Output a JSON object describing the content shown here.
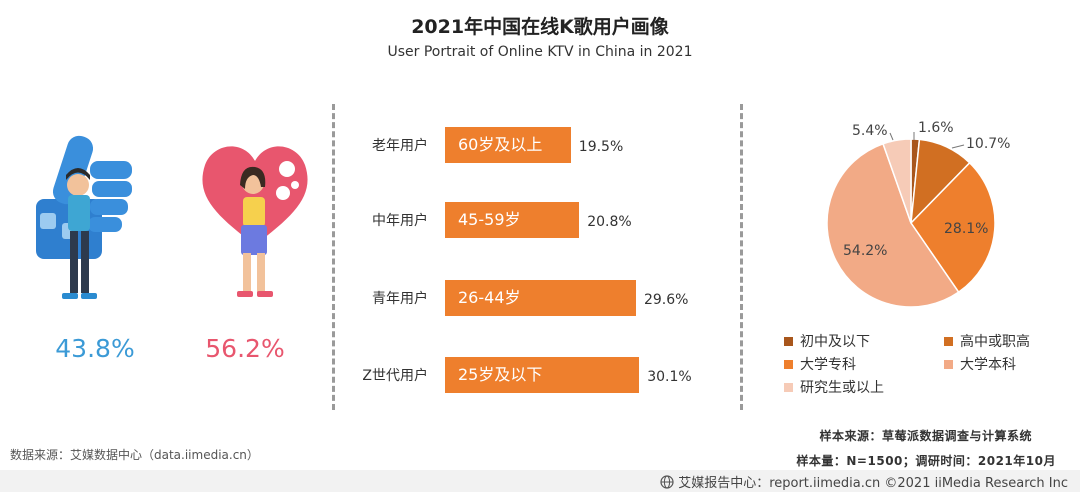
{
  "header": {
    "title": "2021年中国在线K歌用户画像",
    "subtitle": "User Portrait of Online KTV in China in 2021"
  },
  "gender": {
    "male_pct": "43.8%",
    "female_pct": "56.2%",
    "male_icon": "thumbs-up-man-icon",
    "female_icon": "heart-woman-icon"
  },
  "chart_data": [
    {
      "type": "bar",
      "orientation": "horizontal",
      "categories": [
        "老年用户",
        "中年用户",
        "青年用户",
        "Z世代用户"
      ],
      "bar_labels": [
        "60岁及以上",
        "45-59岁",
        "26-44岁",
        "25岁及以下"
      ],
      "values": [
        19.5,
        20.8,
        29.6,
        30.1
      ],
      "value_labels": [
        "19.5%",
        "20.8%",
        "29.6%",
        "30.1%"
      ],
      "unit": "%",
      "color": "#ee7f2d",
      "xlim": [
        0,
        31
      ]
    },
    {
      "type": "pie",
      "categories": [
        "初中及以下",
        "高中或职高",
        "大学专科",
        "大学本科",
        "研究生或以上"
      ],
      "values": [
        1.6,
        10.7,
        28.1,
        54.2,
        5.4
      ],
      "value_labels": [
        "1.6%",
        "10.7%",
        "28.1%",
        "54.2%",
        "5.4%"
      ],
      "colors": [
        "#a8561c",
        "#d16f22",
        "#ee7f2d",
        "#f2aa86",
        "#f6cbb7"
      ],
      "legend_position": "bottom"
    }
  ],
  "legend": {
    "items": [
      "初中及以下",
      "高中或职高",
      "大学专科",
      "大学本科",
      "研究生或以上"
    ]
  },
  "footer": {
    "source_left": "数据来源：艾媒数据中心（data.iimedia.cn）",
    "sample_source": "样本来源：草莓派数据调查与计算系统",
    "sample_size": "样本量：N=1500；调研时间：2021年10月",
    "brand": "艾媒报告中心：report.iimedia.cn  ©2021  iiMedia Research  Inc",
    "brand_icon": "globe-icon"
  }
}
